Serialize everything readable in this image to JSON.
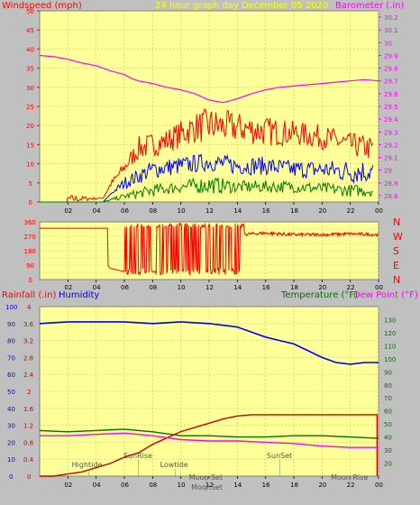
{
  "colors": {
    "background": "#c0c0c0",
    "plot_bg": "#ffff99",
    "grid": "#c8c864",
    "red": "#ff0000",
    "blue": "#0000ff",
    "green": "#007f00",
    "magenta": "#ff00ff",
    "darkgreen": "#007000",
    "darkred": "#cc0000",
    "maroon": "#800000",
    "yellow": "#ffff00",
    "gray_text": "#555555"
  },
  "header": {
    "left_label": "Windspeed (mph)",
    "center_label": "24 hour graph day   December 05 2020",
    "right_label": "Barometer (.in)"
  },
  "x_ticks": [
    "02",
    "04",
    "06",
    "08",
    "10",
    "12",
    "14",
    "16",
    "18",
    "20",
    "22",
    "00"
  ],
  "chart_data": [
    {
      "type": "line",
      "name": "wind",
      "x_range": [
        0,
        24
      ],
      "y_left": {
        "label": "Windspeed (mph)",
        "range": [
          0,
          50
        ],
        "ticks": [
          "0",
          "5",
          "10",
          "15",
          "20",
          "25",
          "30",
          "35",
          "40",
          "45",
          "50"
        ]
      },
      "y_right": {
        "label": "Barometer (.in)",
        "range": [
          28.75,
          30.25
        ],
        "ticks": [
          "28.8",
          "28.9",
          "29",
          "29.1",
          "29.2",
          "29.3",
          "29.4",
          "29.5",
          "29.6",
          "29.7",
          "29.8",
          "29.9",
          "30",
          "30.1",
          "30.2"
        ]
      },
      "series": [
        {
          "key": "gust",
          "color": "red",
          "envelope": [
            [
              0,
              0
            ],
            [
              2,
              0
            ],
            [
              2,
              1.5
            ],
            [
              4.5,
              1
            ],
            [
              5,
              5
            ],
            [
              6,
              10
            ],
            [
              7,
              16
            ],
            [
              9,
              18
            ],
            [
              11,
              22
            ],
            [
              12,
              23
            ],
            [
              14,
              22
            ],
            [
              16,
              21
            ],
            [
              18,
              20
            ],
            [
              20,
              19
            ],
            [
              22,
              17
            ],
            [
              23.5,
              16
            ]
          ],
          "values": [
            [
              0,
              0
            ],
            [
              2,
              0
            ],
            [
              4.5,
              1
            ],
            [
              5,
              4
            ],
            [
              6,
              8
            ],
            [
              7,
              12
            ],
            [
              9,
              14
            ],
            [
              11,
              17
            ],
            [
              12,
              17
            ],
            [
              14,
              17
            ],
            [
              16,
              16
            ],
            [
              18,
              16
            ],
            [
              20,
              15
            ],
            [
              22,
              13
            ],
            [
              23.5,
              12
            ]
          ]
        },
        {
          "key": "average",
          "color": "blue",
          "envelope": [
            [
              4.5,
              0
            ],
            [
              5,
              2
            ],
            [
              6,
              6
            ],
            [
              8,
              10
            ],
            [
              10,
              11
            ],
            [
              12,
              12
            ],
            [
              14,
              11
            ],
            [
              16,
              11
            ],
            [
              18,
              10
            ],
            [
              20,
              10
            ],
            [
              22,
              10
            ],
            [
              23.5,
              10
            ]
          ],
          "values": [
            [
              4.5,
              0
            ],
            [
              5,
              2
            ],
            [
              6,
              4
            ],
            [
              8,
              7
            ],
            [
              10,
              8
            ],
            [
              12,
              9
            ],
            [
              14,
              8
            ],
            [
              16,
              8
            ],
            [
              18,
              7
            ],
            [
              20,
              7
            ],
            [
              22,
              6
            ],
            [
              23.5,
              6
            ]
          ]
        },
        {
          "key": "lull",
          "color": "green",
          "envelope": [
            [
              4.5,
              0
            ],
            [
              6,
              2
            ],
            [
              8,
              4
            ],
            [
              10,
              5
            ],
            [
              12,
              6
            ],
            [
              14,
              5
            ],
            [
              18,
              5
            ],
            [
              22,
              4
            ],
            [
              23.5,
              4
            ]
          ],
          "values": [
            [
              4.5,
              0
            ],
            [
              6,
              1
            ],
            [
              8,
              2
            ],
            [
              10,
              3
            ],
            [
              12,
              3
            ],
            [
              14,
              3
            ],
            [
              18,
              3
            ],
            [
              22,
              2
            ],
            [
              23.5,
              2
            ]
          ]
        },
        {
          "key": "barometer",
          "color": "magenta",
          "axis": "right",
          "values": [
            [
              0,
              29.9
            ],
            [
              1,
              29.89
            ],
            [
              2,
              29.87
            ],
            [
              3,
              29.84
            ],
            [
              4,
              29.82
            ],
            [
              5,
              29.78
            ],
            [
              6,
              29.75
            ],
            [
              6.5,
              29.72
            ],
            [
              7,
              29.7
            ],
            [
              8,
              29.68
            ],
            [
              9,
              29.65
            ],
            [
              10,
              29.63
            ],
            [
              11,
              29.6
            ],
            [
              12,
              29.55
            ],
            [
              13,
              29.53
            ],
            [
              14,
              29.56
            ],
            [
              15,
              29.6
            ],
            [
              16,
              29.63
            ],
            [
              17,
              29.65
            ],
            [
              18,
              29.66
            ],
            [
              19,
              29.67
            ],
            [
              20,
              29.68
            ],
            [
              21,
              29.69
            ],
            [
              22,
              29.7
            ],
            [
              23,
              29.71
            ],
            [
              24,
              29.7
            ]
          ]
        }
      ]
    },
    {
      "type": "line",
      "name": "wind_direction",
      "x_range": [
        0,
        24
      ],
      "y_left": {
        "range": [
          0,
          360
        ],
        "ticks": [
          "0",
          "45",
          "90",
          "135",
          "180",
          "225",
          "270",
          "315",
          "360"
        ]
      },
      "compass": [
        "N",
        "W",
        "S",
        "E",
        "N"
      ],
      "series": [
        {
          "key": "direction",
          "color": "red",
          "values": [
            [
              0,
              320
            ],
            [
              4.8,
              320
            ],
            [
              4.8,
              90
            ],
            [
              5,
              70
            ],
            [
              6,
              50
            ],
            [
              7,
              30
            ],
            [
              8,
              20
            ],
            [
              9,
              20
            ],
            [
              11,
              20
            ],
            [
              12,
              40
            ],
            [
              13,
              180
            ],
            [
              14,
              280
            ],
            [
              16,
              290
            ],
            [
              18,
              280
            ],
            [
              20,
              280
            ],
            [
              22,
              285
            ],
            [
              24,
              280
            ]
          ],
          "oscillation": {
            "from": 6,
            "to": 14.5,
            "low": 30,
            "high": 350
          }
        }
      ]
    },
    {
      "type": "line",
      "name": "rain_humidity_temp",
      "x_range": [
        0,
        24
      ],
      "header": {
        "rain": "Rainfall (.in)",
        "humidity": "Humidity",
        "temperature": "Temperature (°F)",
        "dewpoint": "Dew Point (°F)"
      },
      "y_left": {
        "range": [
          0,
          100
        ],
        "ticks": [
          "0",
          "10",
          "20",
          "30",
          "40",
          "50",
          "60",
          "70",
          "80",
          "90",
          "100"
        ]
      },
      "y_rain": {
        "range": [
          0,
          4
        ],
        "ticks": [
          "0",
          "0.4",
          "0.8",
          "1.2",
          "1.6",
          "2",
          "2.4",
          "2.8",
          "3.2",
          "3.6",
          "4"
        ]
      },
      "y_right": {
        "range": [
          10,
          140
        ],
        "ticks": [
          "20",
          "30",
          "40",
          "50",
          "60",
          "70",
          "80",
          "90",
          "100",
          "110",
          "120",
          "130"
        ]
      },
      "series": [
        {
          "key": "rainfall",
          "color": "darkred",
          "axis": "rain",
          "values": [
            [
              0,
              0
            ],
            [
              1,
              0
            ],
            [
              2,
              0.05
            ],
            [
              3,
              0.1
            ],
            [
              4,
              0.2
            ],
            [
              5,
              0.3
            ],
            [
              6,
              0.45
            ],
            [
              7,
              0.55
            ],
            [
              8,
              0.75
            ],
            [
              9,
              0.9
            ],
            [
              10,
              1.05
            ],
            [
              11,
              1.15
            ],
            [
              12,
              1.25
            ],
            [
              13,
              1.35
            ],
            [
              14,
              1.42
            ],
            [
              15,
              1.45
            ],
            [
              16,
              1.45
            ],
            [
              18,
              1.45
            ],
            [
              20,
              1.45
            ],
            [
              22,
              1.45
            ],
            [
              23.9,
              1.45
            ],
            [
              23.9,
              0
            ]
          ]
        },
        {
          "key": "humidity",
          "color": "blue",
          "axis": "left",
          "values": [
            [
              0,
              90
            ],
            [
              2,
              91
            ],
            [
              4,
              91
            ],
            [
              6,
              91
            ],
            [
              8,
              90
            ],
            [
              10,
              91
            ],
            [
              12,
              90
            ],
            [
              14,
              88
            ],
            [
              15,
              85
            ],
            [
              16,
              82
            ],
            [
              17,
              80
            ],
            [
              18,
              78
            ],
            [
              19,
              74
            ],
            [
              20,
              70
            ],
            [
              21,
              67
            ],
            [
              22,
              66
            ],
            [
              23,
              67
            ],
            [
              24,
              67
            ]
          ]
        },
        {
          "key": "temperature",
          "color": "darkgreen",
          "axis": "right",
          "values": [
            [
              0,
              45
            ],
            [
              2,
              44
            ],
            [
              4,
              45
            ],
            [
              6,
              46
            ],
            [
              7,
              45
            ],
            [
              8,
              44
            ],
            [
              10,
              41
            ],
            [
              12,
              41
            ],
            [
              14,
              40
            ],
            [
              16,
              40
            ],
            [
              18,
              41
            ],
            [
              20,
              41
            ],
            [
              22,
              40
            ],
            [
              24,
              39
            ]
          ]
        },
        {
          "key": "dewpoint",
          "color": "magenta",
          "axis": "right",
          "values": [
            [
              0,
              41
            ],
            [
              2,
              41
            ],
            [
              4,
              42
            ],
            [
              6,
              43
            ],
            [
              7,
              42
            ],
            [
              8,
              41
            ],
            [
              10,
              38
            ],
            [
              12,
              37
            ],
            [
              14,
              37
            ],
            [
              16,
              36
            ],
            [
              18,
              35
            ],
            [
              20,
              33
            ],
            [
              22,
              32
            ],
            [
              24,
              32
            ]
          ]
        }
      ],
      "events": [
        {
          "label": "Hightide",
          "x": 3.5,
          "level": 0
        },
        {
          "label": "SunRise",
          "x": 7.0,
          "level": 1
        },
        {
          "label": "Lowtide",
          "x": 9.6,
          "level": 0
        },
        {
          "label": "Moon Set",
          "x": 11.8,
          "level": 2
        },
        {
          "label": "MoonSet",
          "x": 11.8,
          "level": 3
        },
        {
          "label": "SunSet",
          "x": 17.0,
          "level": 1
        },
        {
          "label": "Moon Rise",
          "x": 22.0,
          "level": 2
        }
      ]
    }
  ]
}
